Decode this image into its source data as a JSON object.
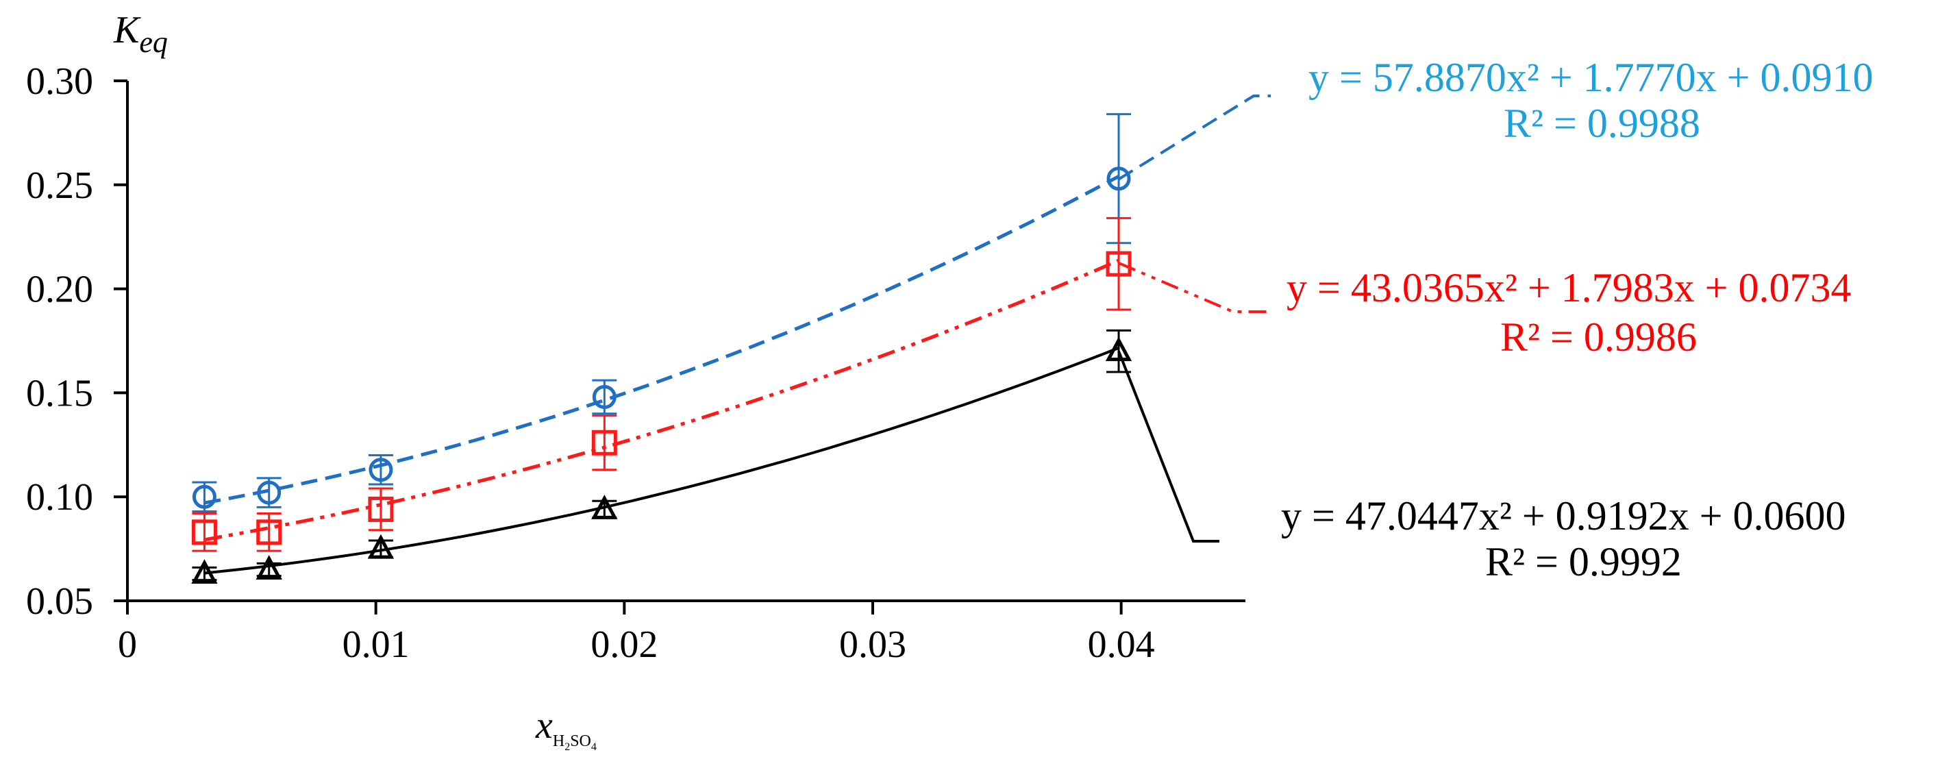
{
  "chart_data": {
    "type": "scatter",
    "xlim": [
      0,
      0.045
    ],
    "ylim": [
      0.05,
      0.3
    ],
    "x_ticks": [
      0,
      0.01,
      0.02,
      0.03,
      0.04
    ],
    "x_tick_labels": [
      "0",
      "0.01",
      "0.02",
      "0.03",
      "0.04"
    ],
    "y_ticks": [
      0.05,
      0.1,
      0.15,
      0.2,
      0.25,
      0.3
    ],
    "y_tick_labels": [
      "0.05",
      "0.10",
      "0.15",
      "0.20",
      "0.25",
      "0.30"
    ],
    "ylabel": {
      "main": "K",
      "sub": "eq"
    },
    "xlabel": {
      "main": "x",
      "sub": "H",
      "sub2": "2",
      "sub3": "SO",
      "sub4": "4"
    },
    "grid": false,
    "series": [
      {
        "marker": "circle",
        "color": "#1f6fc5",
        "line_style": "dashed",
        "x": [
          0.0031,
          0.0057,
          0.0102,
          0.0192,
          0.0399
        ],
        "y": [
          0.1,
          0.102,
          0.113,
          0.148,
          0.253
        ],
        "err": [
          0.007,
          0.007,
          0.007,
          0.008,
          0.031
        ],
        "fit": {
          "a": 57.887,
          "b": 1.777,
          "c": 0.091
        },
        "equation": "y = 57.8870x² + 1.7770x + 0.0910",
        "r2": "R² = 0.9988",
        "label_color": "#1ea0dc"
      },
      {
        "marker": "square",
        "color": "#ff1a1a",
        "line_style": "dashdotdot",
        "x": [
          0.0031,
          0.0057,
          0.0102,
          0.0192,
          0.0399
        ],
        "y": [
          0.083,
          0.083,
          0.094,
          0.126,
          0.212
        ],
        "err": [
          0.009,
          0.009,
          0.01,
          0.013,
          0.022
        ],
        "fit": {
          "a": 43.0365,
          "b": 1.7983,
          "c": 0.0734
        },
        "equation": "y = 43.0365x² + 1.7983x + 0.0734",
        "r2": "R² = 0.9986",
        "label_color": "#ff0000"
      },
      {
        "marker": "triangle",
        "color": "#000000",
        "line_style": "solid",
        "x": [
          0.0031,
          0.0057,
          0.0102,
          0.0192,
          0.0399
        ],
        "y": [
          0.063,
          0.065,
          0.075,
          0.094,
          0.17
        ],
        "err": [
          0.003,
          0.003,
          0.004,
          0.004,
          0.01
        ],
        "fit": {
          "a": 47.0447,
          "b": 0.9192,
          "c": 0.06
        },
        "equation": "y = 47.0447x² + 0.9192x + 0.0600",
        "r2": "R² = 0.9992",
        "label_color": "#000000"
      }
    ]
  }
}
